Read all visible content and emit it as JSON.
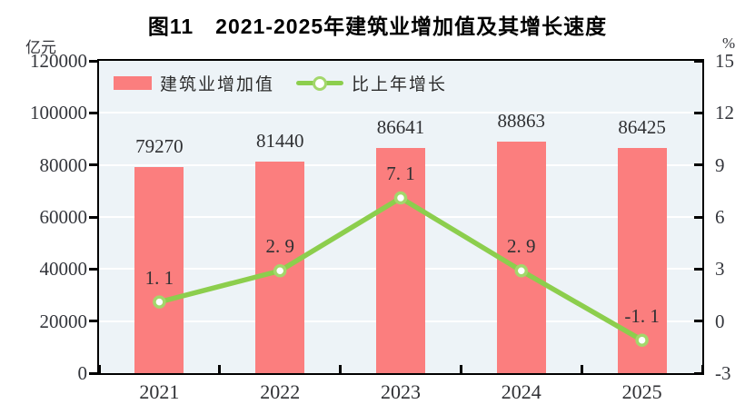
{
  "chart_data": {
    "type": "combo",
    "title": "图11　2021-2025年建筑业增加值及其增长速度",
    "categories": [
      "2021",
      "2022",
      "2023",
      "2024",
      "2025"
    ],
    "series": [
      {
        "name": "建筑业增加值",
        "chart": "bar",
        "axis": "left",
        "values": [
          79270,
          81440,
          86641,
          88863,
          86425
        ],
        "labels": [
          "79270",
          "81440",
          "86641",
          "88863",
          "86425"
        ],
        "color": "#fb7e7e"
      },
      {
        "name": "比上年增长",
        "chart": "line",
        "axis": "right",
        "values": [
          1.1,
          2.9,
          7.1,
          2.9,
          -1.1
        ],
        "labels": [
          "1. 1",
          "2. 9",
          "7. 1",
          "2. 9",
          "-1. 1"
        ],
        "color": "#8cce4d",
        "marker_fill": "#ffffff",
        "marker_stroke": "#a3d76b"
      }
    ],
    "left_axis": {
      "unit": "亿元",
      "min": 0,
      "max": 120000,
      "step": 20000,
      "tick_labels": [
        "120000",
        "100000",
        "80000",
        "60000",
        "40000",
        "20000",
        "0"
      ]
    },
    "right_axis": {
      "unit": "%",
      "min": -3,
      "max": 15,
      "step": 3,
      "tick_labels": [
        "15",
        "12",
        "9",
        "6",
        "3",
        "0",
        "-3"
      ]
    },
    "plot_style": {
      "background": "#edf3f7",
      "grid_color": "#ffffff",
      "border_color": "#000000"
    },
    "grid": true,
    "legend_position": "top-left-inside"
  }
}
